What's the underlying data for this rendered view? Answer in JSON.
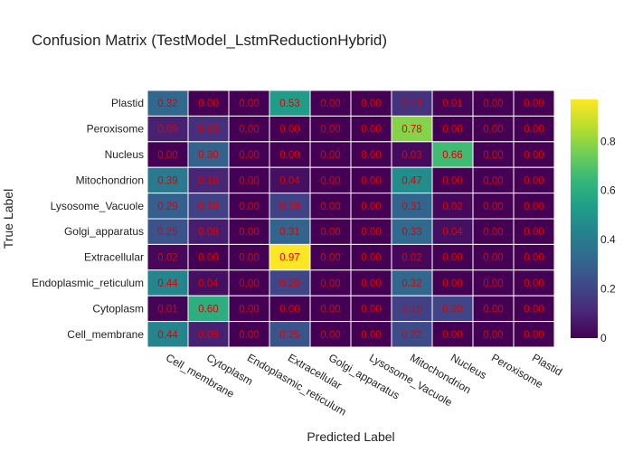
{
  "chart_data": {
    "type": "heatmap",
    "title": "Confusion Matrix (TestModel_LstmReductionHybrid)",
    "xlabel": "Predicted Label",
    "ylabel": "True Label",
    "x_categories": [
      "Cell_membrane",
      "Cytoplasm",
      "Endoplasmic_reticulum",
      "Extracellular",
      "Golgi_apparatus",
      "Lysosome_Vacuole",
      "Mitochondrion",
      "Nucleus",
      "Peroxisome",
      "Plastid"
    ],
    "y_categories_top_to_bottom": [
      "Plastid",
      "Peroxisome",
      "Nucleus",
      "Mitochondrion",
      "Lysosome_Vacuole",
      "Golgi_apparatus",
      "Extracellular",
      "Endoplasmic_reticulum",
      "Cytoplasm",
      "Cell_membrane"
    ],
    "values": [
      [
        0.32,
        0.0,
        0.0,
        0.53,
        0.0,
        0.0,
        0.14,
        0.01,
        0.0,
        0.0
      ],
      [
        0.09,
        0.13,
        0.0,
        0.0,
        0.0,
        0.0,
        0.78,
        0.0,
        0.0,
        0.0
      ],
      [
        0.0,
        0.3,
        0.0,
        0.0,
        0.0,
        0.0,
        0.03,
        0.66,
        0.0,
        0.0
      ],
      [
        0.39,
        0.1,
        0.0,
        0.04,
        0.0,
        0.0,
        0.47,
        0.0,
        0.0,
        0.0
      ],
      [
        0.29,
        0.19,
        0.0,
        0.19,
        0.0,
        0.0,
        0.31,
        0.02,
        0.0,
        0.0
      ],
      [
        0.25,
        0.08,
        0.0,
        0.31,
        0.0,
        0.0,
        0.33,
        0.04,
        0.0,
        0.0
      ],
      [
        0.02,
        0.0,
        0.0,
        0.97,
        0.0,
        0.0,
        0.02,
        0.0,
        0.0,
        0.0
      ],
      [
        0.44,
        0.04,
        0.0,
        0.2,
        0.0,
        0.0,
        0.32,
        0.0,
        0.0,
        0.0
      ],
      [
        0.01,
        0.6,
        0.0,
        0.0,
        0.0,
        0.0,
        0.19,
        0.2,
        0.0,
        0.0
      ],
      [
        0.44,
        0.09,
        0.0,
        0.25,
        0.0,
        0.0,
        0.22,
        0.0,
        0.0,
        0.0
      ]
    ],
    "colorscale": "Viridis",
    "zlim": [
      0,
      0.97
    ],
    "colorbar_ticks": [
      "0",
      "0.2",
      "0.4",
      "0.6",
      "0.8"
    ],
    "colorbar_tick_values": [
      0,
      0.2,
      0.4,
      0.6,
      0.8
    ],
    "cell_text_color": "#e00000",
    "grid": false,
    "legend": "colorbar-right"
  }
}
